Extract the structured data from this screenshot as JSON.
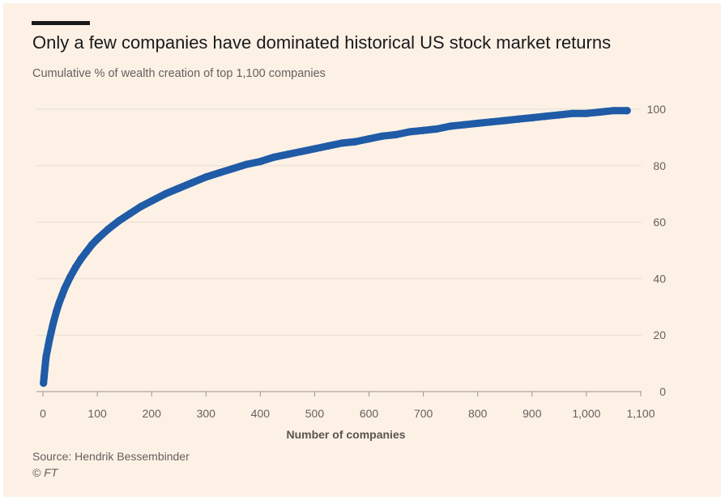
{
  "header": {
    "title": "Only a few companies have dominated historical US stock market returns",
    "subtitle": "Cumulative % of wealth creation of top 1,100 companies"
  },
  "footer": {
    "source": "Source: Hendrik Bessembinder",
    "copyright": "© FT"
  },
  "colors": {
    "background": "#fdf1e6",
    "series": "#1f5ba6",
    "gridline": "#e8ddd3",
    "text": "#1a1a1a",
    "muted": "#66605c"
  },
  "chart_data": {
    "type": "scatter",
    "title": "Only a few companies have dominated historical US stock market returns",
    "subtitle": "Cumulative % of wealth creation of top 1,100 companies",
    "xlabel": "Number of companies",
    "ylabel": "",
    "xlim": [
      0,
      1100
    ],
    "ylim": [
      0,
      100
    ],
    "x_ticks": [
      0,
      100,
      200,
      300,
      400,
      500,
      600,
      700,
      800,
      900,
      1000,
      1100
    ],
    "x_tick_labels": [
      "0",
      "100",
      "200",
      "300",
      "400",
      "500",
      "600",
      "700",
      "800",
      "900",
      "1,000",
      "1,100"
    ],
    "y_ticks": [
      0,
      20,
      40,
      60,
      80,
      100
    ],
    "y_tick_labels": [
      "0",
      "20",
      "40",
      "60",
      "80",
      "100"
    ],
    "y_axis_side": "right",
    "grid": "horizontal",
    "series": [
      {
        "name": "Cumulative % of wealth creation",
        "x": [
          1,
          2,
          3,
          4,
          5,
          6,
          8,
          10,
          12,
          15,
          18,
          20,
          25,
          30,
          35,
          40,
          50,
          60,
          70,
          80,
          90,
          100,
          120,
          140,
          160,
          180,
          200,
          225,
          250,
          275,
          300,
          325,
          350,
          375,
          400,
          425,
          450,
          475,
          500,
          525,
          550,
          575,
          600,
          625,
          650,
          675,
          700,
          725,
          750,
          775,
          800,
          825,
          850,
          875,
          900,
          925,
          950,
          975,
          1000,
          1025,
          1050,
          1075
        ],
        "values": [
          3,
          5,
          7,
          9,
          11,
          12.5,
          14.5,
          16.5,
          18.5,
          21,
          23.5,
          25,
          28.5,
          31.5,
          34,
          36.5,
          40.5,
          44,
          47,
          49.5,
          52,
          54,
          57.5,
          60.5,
          63,
          65.5,
          67.5,
          70,
          72,
          74,
          76,
          77.5,
          79,
          80.5,
          81.5,
          83,
          84,
          85,
          86,
          87,
          88,
          88.5,
          89.5,
          90.5,
          91,
          92,
          92.5,
          93,
          94,
          94.5,
          95,
          95.5,
          96,
          96.5,
          97,
          97.5,
          98,
          98.5,
          98.5,
          99,
          99.5,
          99.5
        ]
      }
    ]
  }
}
